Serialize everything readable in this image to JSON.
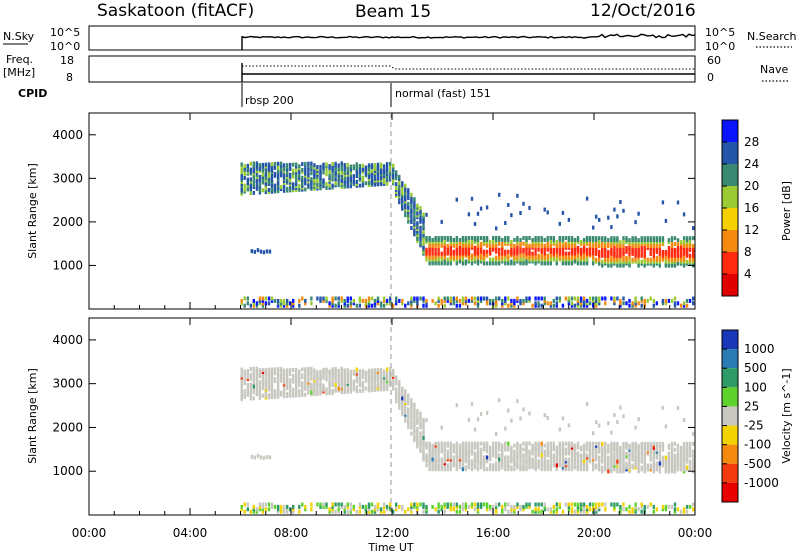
{
  "header": {
    "title": "Saskatoon (fitACF)",
    "beam": "Beam 15",
    "date": "12/Oct/2016"
  },
  "status_panels": {
    "nsky_label": "N.Sky",
    "nsky_ticks": [
      "10^5",
      "10^0"
    ],
    "nsearch_label": "N.Search",
    "nsearch_ticks": [
      "10^5",
      "10^0"
    ],
    "freq_label": "Freq.",
    "freq_unit": "[MHz]",
    "freq_ticks": [
      "18",
      "8"
    ],
    "nave_label": "Nave",
    "nave_ticks": [
      "60",
      "0"
    ],
    "cpid_label": "CPID",
    "cpid_segments": [
      {
        "label": "rbsp 200",
        "start_hour": 6.0
      },
      {
        "label": "normal (fast) 151",
        "start_hour": 12.0
      }
    ]
  },
  "chart_data": [
    {
      "type": "heatmap",
      "name": "power",
      "ylabel": "Slant Range [km]",
      "ylim": [
        0,
        4500
      ],
      "y_ticks": [
        1000,
        2000,
        3000,
        4000
      ],
      "xlim": [
        0,
        24
      ],
      "colorbar": {
        "label": "Power [dB]",
        "tick_labels": [
          "28",
          "24",
          "20",
          "16",
          "12",
          "8",
          "4"
        ],
        "colors": [
          "#0a14ff",
          "#2555a8",
          "#3a8a72",
          "#9ccc34",
          "#f4d000",
          "#f58a10",
          "#ff2a10",
          "#e00000"
        ]
      },
      "echo_regions": [
        {
          "t_start": 6.0,
          "t_end": 12.0,
          "range_km": [
            2600,
            3300
          ]
        },
        {
          "t_start": 12.0,
          "t_end": 13.3,
          "range_km": [
            2000,
            3100
          ]
        },
        {
          "t_start": 13.3,
          "t_end": 24.0,
          "range_km": [
            1000,
            1600
          ]
        },
        {
          "t_start": 6.0,
          "t_end": 24.0,
          "range_km": [
            0,
            250
          ]
        }
      ]
    },
    {
      "type": "heatmap",
      "name": "velocity",
      "ylabel": "Slant Range [km]",
      "ylim": [
        0,
        4500
      ],
      "y_ticks": [
        1000,
        2000,
        3000,
        4000
      ],
      "xlim": [
        0,
        24
      ],
      "xlabel": "Time UT",
      "x_ticks": [
        "00:00",
        "04:00",
        "08:00",
        "12:00",
        "16:00",
        "20:00",
        "00:00"
      ],
      "colorbar": {
        "label": "Velocity [m s^-1]",
        "tick_labels": [
          "1000",
          "500",
          "100",
          "25",
          "-25",
          "-100",
          "-500",
          "-1000"
        ],
        "colors": [
          "#1838b8",
          "#2a7ab4",
          "#2e9a66",
          "#5fd22e",
          "#c8c8c0",
          "#f2d200",
          "#f58a10",
          "#f23c10",
          "#e80000"
        ]
      },
      "ground_scatter_color": "#c8c8c0"
    }
  ]
}
